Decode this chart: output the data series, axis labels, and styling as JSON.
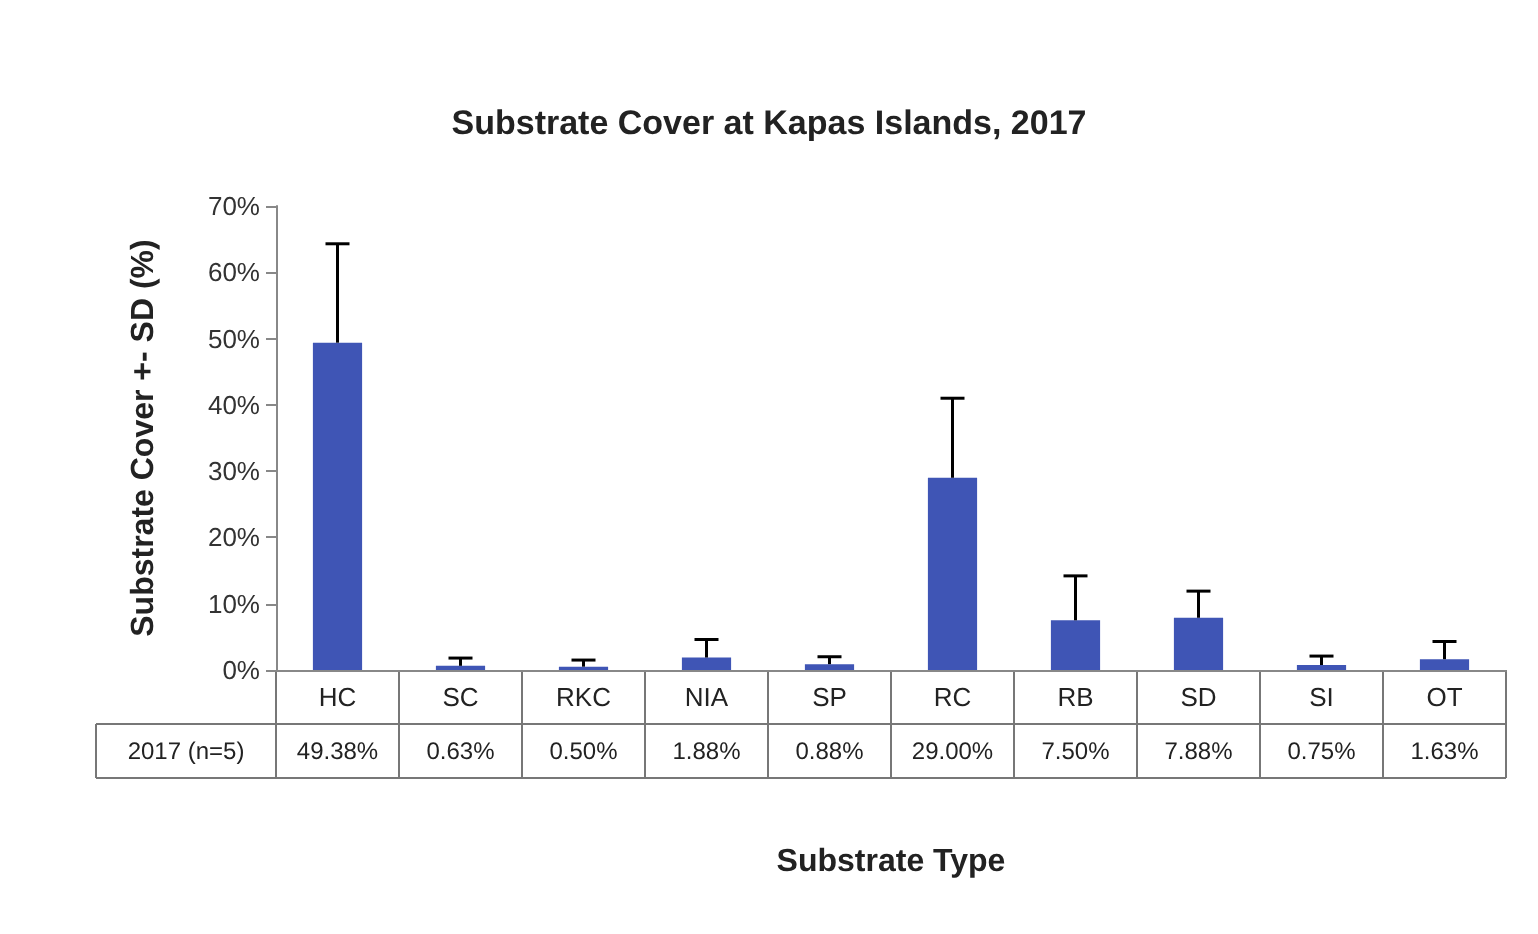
{
  "chart_data": {
    "type": "bar",
    "title": "Substrate Cover at Kapas Islands, 2017",
    "xlabel": "Substrate Type",
    "ylabel": "Substrate Cover +- SD (%)",
    "categories": [
      "HC",
      "SC",
      "RKC",
      "NIA",
      "SP",
      "RC",
      "RB",
      "SD",
      "SI",
      "OT"
    ],
    "series": [
      {
        "name": "2017 (n=5)",
        "color": "#3f55b5",
        "values": [
          49.38,
          0.63,
          0.5,
          1.88,
          0.88,
          29.0,
          7.5,
          7.88,
          0.75,
          1.63
        ],
        "value_labels": [
          "49.38%",
          "0.63%",
          "0.50%",
          "1.88%",
          "0.88%",
          "29.00%",
          "7.50%",
          "7.88%",
          "0.75%",
          "1.63%"
        ],
        "errors": [
          [
            49.38,
            64.3
          ],
          [
            0.63,
            1.8
          ],
          [
            0.5,
            1.5
          ],
          [
            1.88,
            4.6
          ],
          [
            0.88,
            2.0
          ],
          [
            29.0,
            41.0
          ],
          [
            7.5,
            14.2
          ],
          [
            7.88,
            11.9
          ],
          [
            0.75,
            2.1
          ],
          [
            1.63,
            4.3
          ]
        ]
      }
    ],
    "ylim": [
      0,
      70
    ],
    "yticks": [
      {
        "value": 0,
        "label": "0%"
      },
      {
        "value": 10,
        "label": "10%"
      },
      {
        "value": 20,
        "label": "20%"
      },
      {
        "value": 30,
        "label": "30%"
      },
      {
        "value": 40,
        "label": "40%"
      },
      {
        "value": 50,
        "label": "50%"
      },
      {
        "value": 60,
        "label": "60%"
      },
      {
        "value": 70,
        "label": "70%"
      }
    ],
    "grid": false,
    "legend": false
  }
}
